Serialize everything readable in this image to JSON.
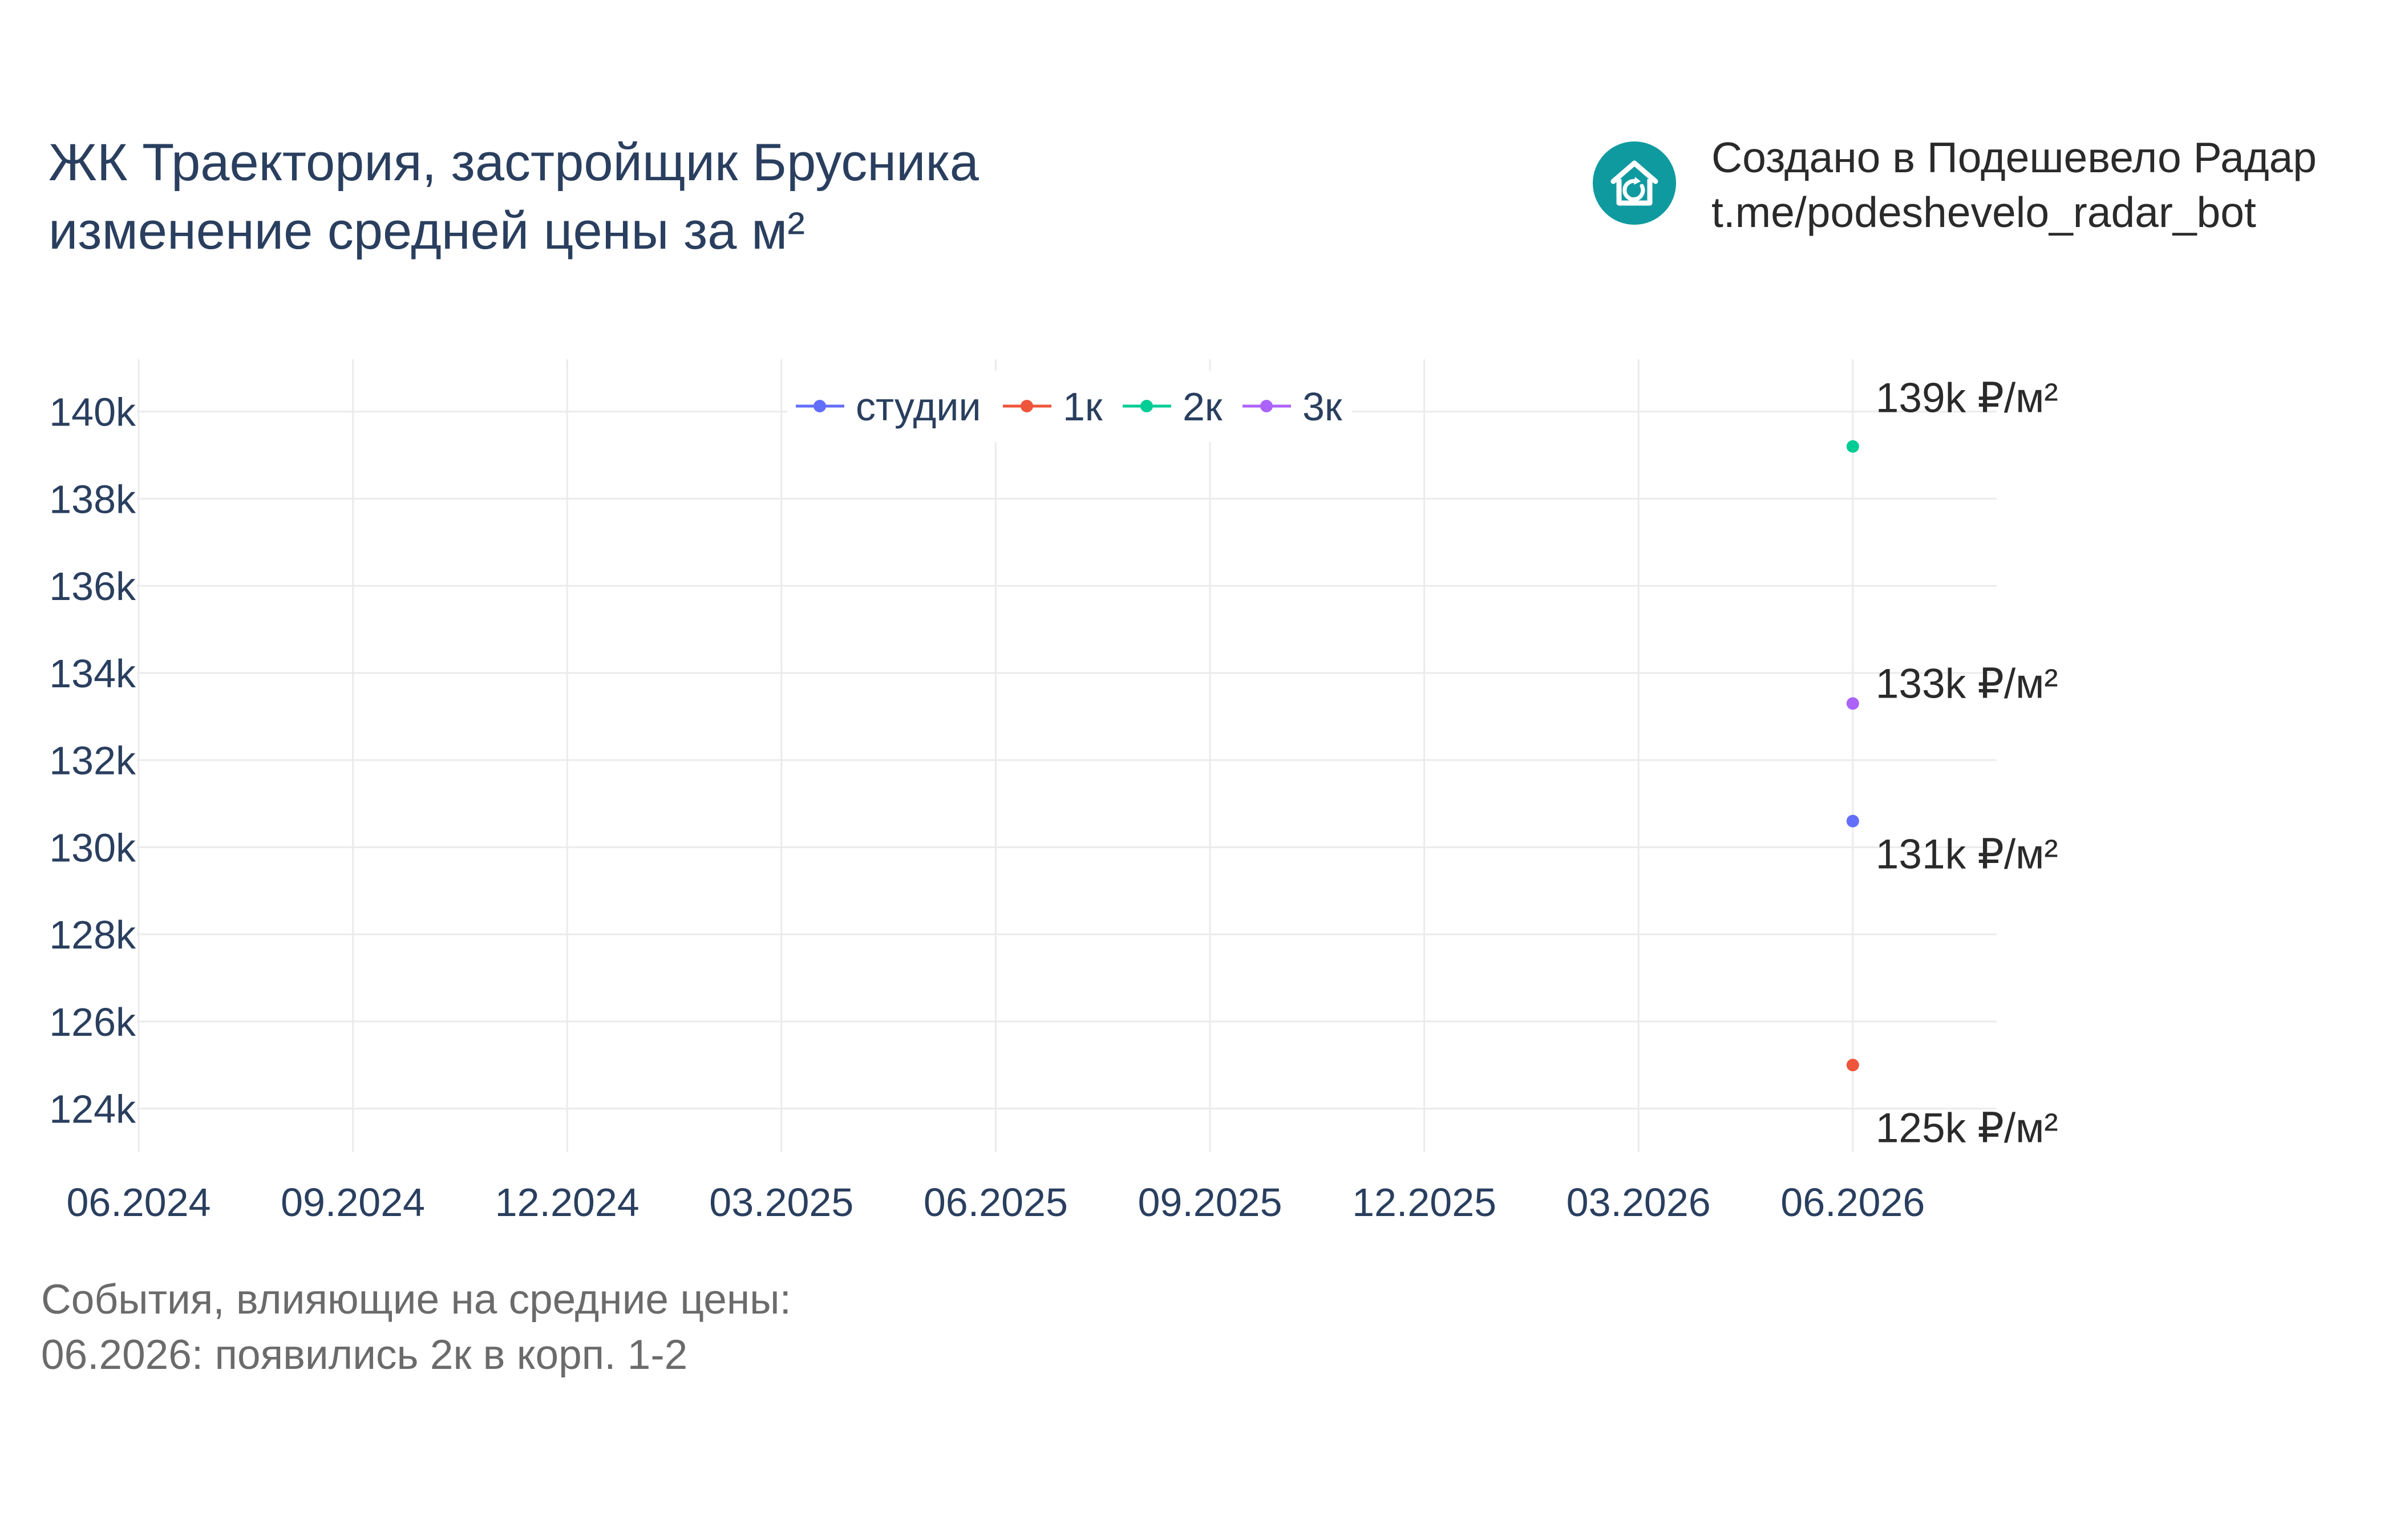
{
  "header": {
    "title_line1": "ЖК Траектория, застройщик Брусника",
    "title_line2": "изменение средней цены за м²"
  },
  "brand": {
    "line1": "Создано в Подешевело Радар",
    "line2": "t.me/podeshevelo_radar_bot",
    "icon": "house-icon",
    "color": "#0f9aa0"
  },
  "chart_data": {
    "type": "scatter",
    "x_ticks": [
      "06.2024",
      "09.2024",
      "12.2024",
      "03.2025",
      "06.2025",
      "09.2025",
      "12.2025",
      "03.2026",
      "06.2026"
    ],
    "y_ticks": [
      124000,
      126000,
      128000,
      130000,
      132000,
      134000,
      136000,
      138000,
      140000
    ],
    "y_tick_labels": [
      "124k",
      "126k",
      "128k",
      "130k",
      "132k",
      "134k",
      "136k",
      "138k",
      "140k"
    ],
    "ylim": [
      123000,
      141200
    ],
    "grid": true,
    "legend_position": "top-center",
    "series": [
      {
        "name": "студии",
        "color": "#636efa",
        "points": [
          {
            "x": "06.2026",
            "y": 130600
          }
        ],
        "label": "131k ₽/м²"
      },
      {
        "name": "1к",
        "color": "#ef553b",
        "points": [
          {
            "x": "06.2026",
            "y": 125000
          }
        ],
        "label": "125k ₽/м²"
      },
      {
        "name": "2к",
        "color": "#00cc96",
        "points": [
          {
            "x": "06.2026",
            "y": 139200
          }
        ],
        "label": "139k ₽/м²"
      },
      {
        "name": "3к",
        "color": "#ab63fa",
        "points": [
          {
            "x": "06.2026",
            "y": 133300
          }
        ],
        "label": "133k ₽/м²"
      }
    ]
  },
  "events": {
    "heading": "События, влияющие на средние цены:",
    "items": [
      "06.2026: появились 2к в корп. 1-2"
    ]
  }
}
